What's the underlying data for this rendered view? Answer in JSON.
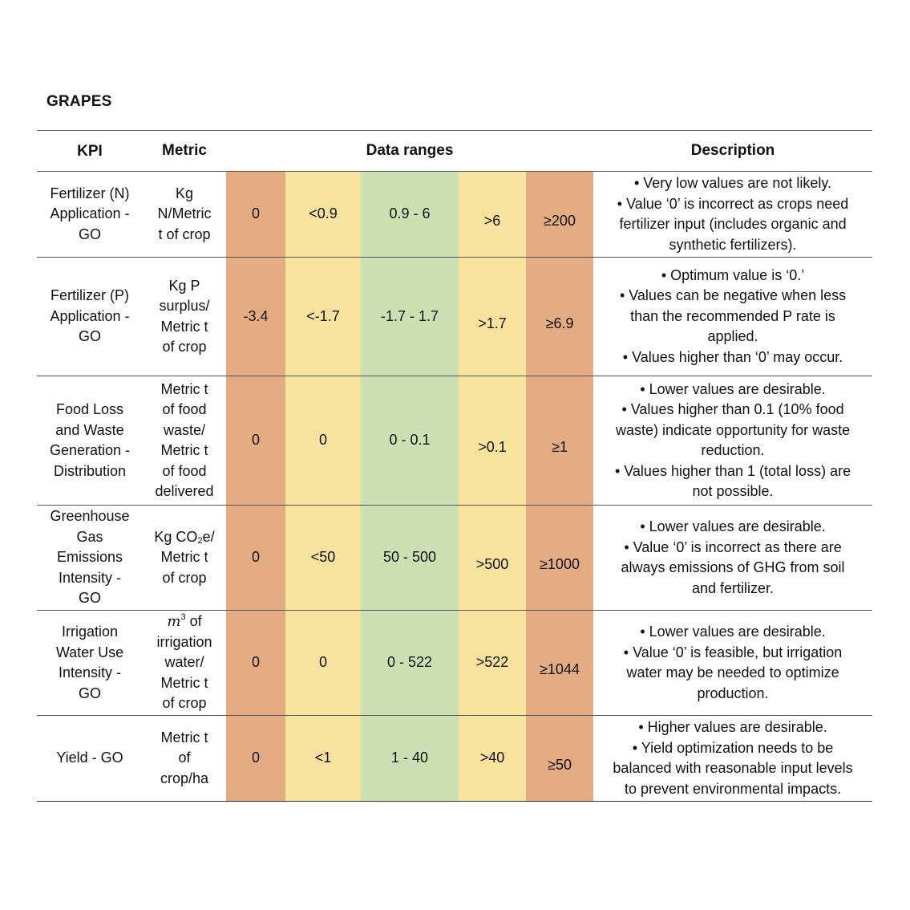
{
  "title": "GRAPES",
  "headers": {
    "kpi": "KPI",
    "metric": "Metric",
    "ranges": "Data ranges",
    "description": "Description"
  },
  "rows": [
    {
      "kpi": [
        "Fertilizer (N)",
        "Application -",
        "GO"
      ],
      "metric": [
        "Kg",
        "N/Metric",
        "t of crop"
      ],
      "ranges": [
        "0",
        "<0.9",
        "0.9 - 6",
        ">6",
        "≥200"
      ],
      "description": [
        "• Very low values are not likely.",
        "• Value ‘0’ is incorrect as crops need",
        "fertilizer input (includes organic and",
        "synthetic fertilizers)."
      ]
    },
    {
      "kpi": [
        "Fertilizer (P)",
        "Application -",
        "GO"
      ],
      "metric": [
        "Kg P",
        "surplus/",
        "Metric t",
        "of crop"
      ],
      "ranges": [
        "-3.4",
        "<-1.7",
        "-1.7 - 1.7",
        ">1.7",
        "≥6.9"
      ],
      "description": [
        "• Optimum value is ‘0.’",
        "• Values can be negative when less",
        "than the recommended P rate is",
        "applied.",
        "• Values higher than ‘0’ may occur."
      ]
    },
    {
      "kpi": [
        "Food Loss",
        "and Waste",
        "Generation -",
        "Distribution"
      ],
      "metric": [
        "Metric t",
        "of food",
        "waste/",
        "Metric t",
        "of food",
        "delivered"
      ],
      "ranges": [
        "0",
        "0",
        "0 - 0.1",
        ">0.1",
        "≥1"
      ],
      "description": [
        "• Lower values are desirable.",
        "• Values higher than 0.1 (10% food",
        "waste) indicate opportunity for waste",
        "reduction.",
        "• Values higher than 1 (total loss) are",
        "not possible."
      ]
    },
    {
      "kpi": [
        "Greenhouse",
        "Gas",
        "Emissions",
        "Intensity -",
        "GO"
      ],
      "metric": {
        "pre": "Kg CO",
        "sub": "2",
        "post": "e/",
        "rest": [
          "Metric t",
          "of crop"
        ]
      },
      "ranges": [
        "0",
        "<50",
        "50 - 500",
        ">500",
        "≥1000"
      ],
      "description": [
        "• Lower values are desirable.",
        "• Value ‘0’ is incorrect as there are",
        "always emissions of GHG from soil",
        "and fertilizer."
      ]
    },
    {
      "kpi": [
        "Irrigation",
        "Water Use",
        "Intensity -",
        "GO"
      ],
      "metric": {
        "base": "m",
        "sup": "3",
        "post": " of",
        "rest": [
          "irrigation",
          "water/",
          "Metric t",
          "of crop"
        ]
      },
      "ranges": [
        "0",
        "0",
        "0 - 522",
        ">522",
        "≥1044"
      ],
      "description": [
        "• Lower values are desirable.",
        "• Value ‘0’ is feasible, but irrigation",
        "water may be needed to optimize",
        "production."
      ]
    },
    {
      "kpi": [
        "Yield - GO"
      ],
      "metric": [
        "Metric t",
        "of",
        "crop/ha"
      ],
      "ranges": [
        "0",
        "<1",
        "1 - 40",
        ">40",
        "≥50"
      ],
      "description": [
        "• Higher values are desirable.",
        "• Yield optimization needs to be",
        "balanced with reasonable input levels",
        "to prevent environmental impacts."
      ]
    }
  ],
  "colors": {
    "red_orange": "#e4ac82",
    "yellow": "#f8e39e",
    "green": "#cde0b3"
  }
}
